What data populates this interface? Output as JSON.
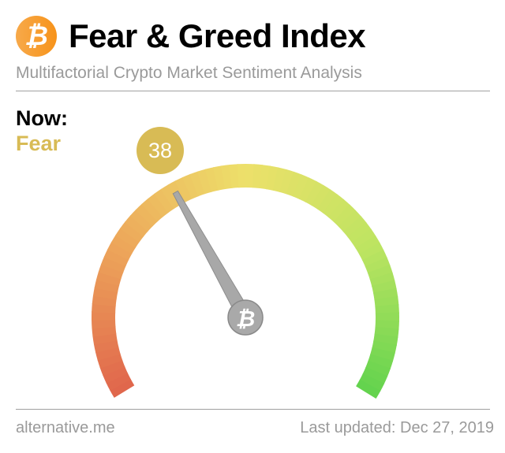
{
  "header": {
    "logo_icon": "bitcoin-icon",
    "title": "Fear & Greed Index",
    "subtitle": "Multifactorial Crypto Market Sentiment Analysis"
  },
  "now": {
    "label": "Now:",
    "classification": "Fear",
    "value": "38",
    "value_number": 38,
    "color": "#d8bb55"
  },
  "gauge": {
    "min": 0,
    "max": 100,
    "colors": [
      "#e0654c",
      "#eda65a",
      "#ede06a",
      "#bde461",
      "#62d34e"
    ],
    "hub_icon": "bitcoin-icon"
  },
  "footer": {
    "source": "alternative.me",
    "updated": "Last updated: Dec 27, 2019"
  }
}
